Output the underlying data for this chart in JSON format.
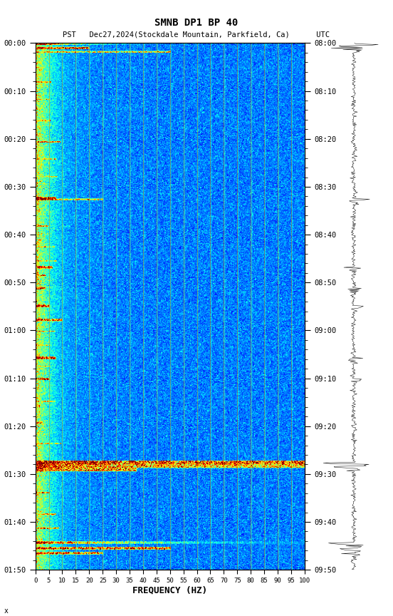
{
  "title_line1": "SMNB DP1 BP 40",
  "title_line2": "PST   Dec27,2024(Stockdale Mountain, Parkfield, Ca)      UTC",
  "xlabel": "FREQUENCY (HZ)",
  "freq_min": 0,
  "freq_max": 100,
  "freq_ticks": [
    0,
    5,
    10,
    15,
    20,
    25,
    30,
    35,
    40,
    45,
    50,
    55,
    60,
    65,
    70,
    75,
    80,
    85,
    90,
    95,
    100
  ],
  "time_ticks_left": [
    "00:00",
    "00:10",
    "00:20",
    "00:30",
    "00:40",
    "00:50",
    "01:00",
    "01:10",
    "01:20",
    "01:30",
    "01:40",
    "01:50"
  ],
  "time_ticks_right": [
    "08:00",
    "08:10",
    "08:20",
    "08:30",
    "08:40",
    "08:50",
    "09:00",
    "09:10",
    "09:20",
    "09:30",
    "09:40",
    "09:50"
  ],
  "background_color": "#ffffff",
  "colormap": "jet",
  "n_time": 750,
  "n_freq": 400
}
